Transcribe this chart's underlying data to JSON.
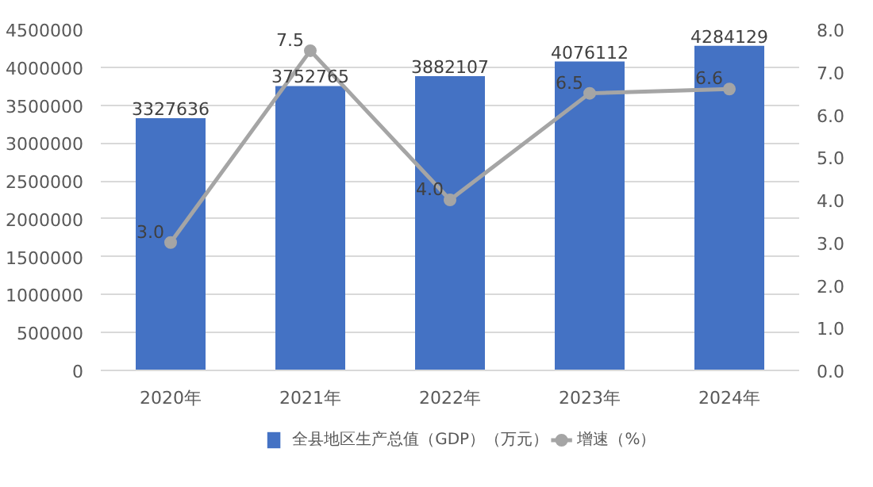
{
  "chart_data": {
    "type": "bar",
    "categories": [
      "2020年",
      "2021年",
      "2022年",
      "2023年",
      "2024年"
    ],
    "series": [
      {
        "name": "全县地区生产总值（GDP）（万元）",
        "color": "#4472c4",
        "values": [
          3327636,
          3752765,
          3882107,
          4076112,
          4284129
        ]
      },
      {
        "name": "增速（%）",
        "type": "line",
        "axis": "y2",
        "color": "#a5a5a5",
        "marker": "circle",
        "values": [
          3.0,
          7.5,
          4.0,
          6.5,
          6.6
        ],
        "value_labels": [
          "3.0",
          "7.5",
          "4.0",
          "6.5",
          "6.6"
        ]
      }
    ],
    "ylim": [
      0,
      4500000
    ],
    "yticks": [
      0,
      500000,
      1000000,
      1500000,
      2000000,
      2500000,
      3000000,
      3500000,
      4000000,
      4500000
    ],
    "y2lim": [
      0,
      8
    ],
    "y2ticks": [
      {
        "value": 0,
        "label": "0.0"
      },
      {
        "value": 1,
        "label": "1.0"
      },
      {
        "value": 2,
        "label": "2.0"
      },
      {
        "value": 3,
        "label": "3.0"
      },
      {
        "value": 4,
        "label": "4.0"
      },
      {
        "value": 5,
        "label": "5.0"
      },
      {
        "value": 6,
        "label": "6.0"
      },
      {
        "value": 7,
        "label": "7.0"
      },
      {
        "value": 8,
        "label": "8.0"
      }
    ],
    "grid": "y",
    "legend": "bottom",
    "data_labels": true
  }
}
